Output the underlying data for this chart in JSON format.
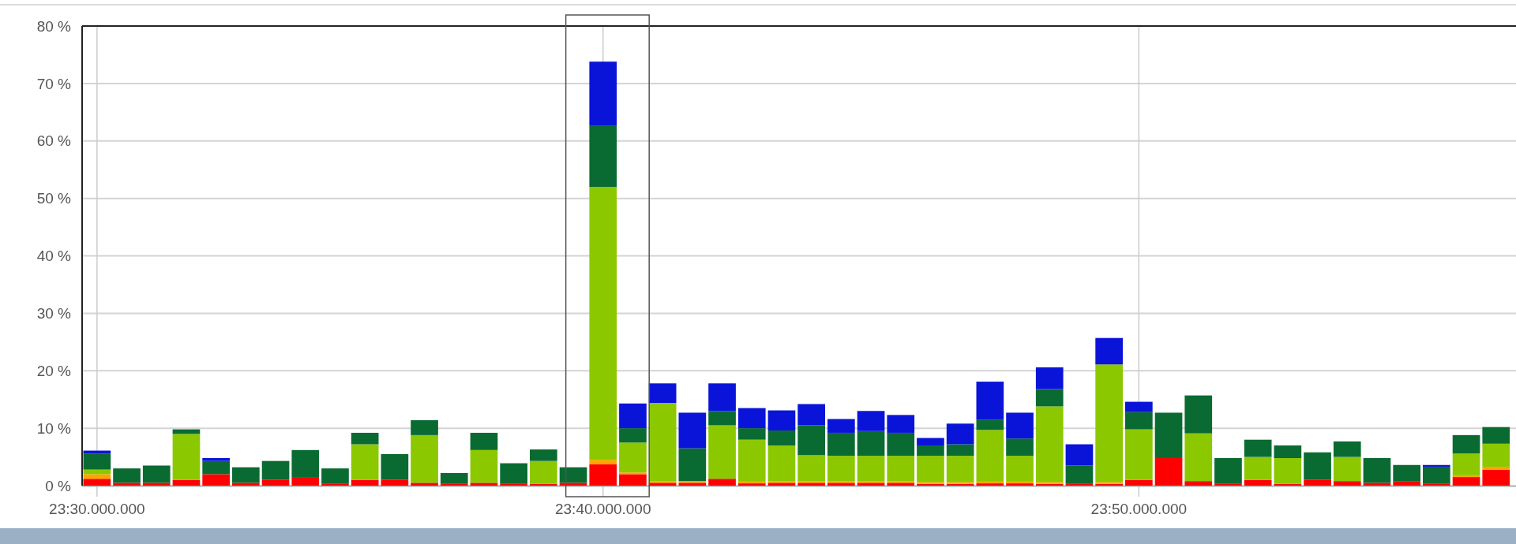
{
  "chart_data": {
    "type": "bar",
    "stacked": true,
    "categories": [
      "23:30.000.000",
      null,
      null,
      null,
      null,
      null,
      null,
      null,
      null,
      null,
      null,
      null,
      null,
      null,
      null,
      null,
      null,
      "23:40.000.000",
      null,
      null,
      null,
      null,
      null,
      null,
      null,
      null,
      null,
      null,
      null,
      null,
      null,
      null,
      null,
      null,
      null,
      "23:50.000.000",
      null,
      null,
      null,
      null,
      null,
      null,
      null,
      null,
      null,
      null,
      null,
      null
    ],
    "series": [
      {
        "color": "#ff0000",
        "values": [
          1.2,
          0.5,
          0.5,
          1,
          2,
          0.5,
          1,
          1.5,
          0.3,
          1,
          1,
          0.5,
          0.3,
          0.5,
          0.3,
          0.3,
          0.5,
          3.7,
          2,
          0.5,
          0.5,
          1.2,
          0.4,
          0.5,
          0.5,
          0.5,
          0.5,
          0.5,
          0.3,
          0.3,
          0.4,
          0.4,
          0.3,
          0.3,
          0.3,
          1,
          4.8,
          0.8,
          0.3,
          1,
          0.3,
          1,
          0.8,
          0.5,
          0.8,
          0.3,
          1.5,
          2.8
        ]
      },
      {
        "color": "#ffa500",
        "values": [
          0.8,
          0,
          0,
          0,
          0,
          0,
          0,
          0,
          0,
          0,
          0,
          0,
          0,
          0,
          0,
          0,
          0,
          0.8,
          0.3,
          0.3,
          0.3,
          0,
          0.3,
          0.3,
          0.3,
          0.3,
          0.3,
          0.3,
          0.3,
          0.3,
          0.3,
          0.3,
          0.3,
          0,
          0.3,
          0,
          0,
          0,
          0,
          0,
          0,
          0,
          0,
          0,
          0,
          0,
          0.3,
          0.5
        ]
      },
      {
        "color": "#8cc800",
        "values": [
          0.8,
          0,
          0,
          8,
          0,
          0,
          0,
          0,
          0,
          6.2,
          0,
          8.3,
          0,
          5.7,
          0,
          4,
          0,
          47.5,
          5.2,
          13.6,
          0,
          9.3,
          7.3,
          6.2,
          4.5,
          4.4,
          4.4,
          4.4,
          4.6,
          4.6,
          9,
          4.5,
          13.2,
          0,
          20.5,
          8.8,
          0,
          8.3,
          0,
          4,
          4.5,
          0,
          4.2,
          0,
          0,
          0,
          3.8,
          4
        ]
      },
      {
        "color": "#0a6b32",
        "values": [
          2.8,
          2.5,
          3,
          0.8,
          2.3,
          2.7,
          3.3,
          4.7,
          2.7,
          2,
          4.5,
          2.6,
          1.9,
          3,
          3.6,
          2,
          2.7,
          10.7,
          2.5,
          0,
          5.7,
          2.5,
          2,
          2.6,
          5.2,
          4,
          4.3,
          4,
          1.8,
          2,
          1.8,
          3,
          3,
          3.2,
          0,
          3,
          7.9,
          6.6,
          4.5,
          3,
          2.2,
          4.8,
          2.7,
          4.3,
          2.8,
          3,
          3.2,
          2.9
        ]
      },
      {
        "color": "#0a14d8",
        "values": [
          0.5,
          0,
          0,
          0,
          0.5,
          0,
          0,
          0,
          0,
          0,
          0,
          0,
          0,
          0,
          0,
          0,
          0,
          11.1,
          4.3,
          3.4,
          6.2,
          4.8,
          3.5,
          3.5,
          3.7,
          2.4,
          3.5,
          3.1,
          1.3,
          3.6,
          6.6,
          4.5,
          3.8,
          3.7,
          4.6,
          1.8,
          0,
          0,
          0,
          0,
          0,
          0,
          0,
          0,
          0,
          0.3,
          0,
          0
        ]
      }
    ],
    "ylim": [
      0,
      80
    ],
    "yticks": [
      {
        "value": 0,
        "label": "0 %"
      },
      {
        "value": 10,
        "label": "10 %"
      },
      {
        "value": 20,
        "label": "20 %"
      },
      {
        "value": 30,
        "label": "30 %"
      },
      {
        "value": 40,
        "label": "40 %"
      },
      {
        "value": 50,
        "label": "50 %"
      },
      {
        "value": 60,
        "label": "60 %"
      },
      {
        "value": 70,
        "label": "70 %"
      },
      {
        "value": 80,
        "label": "80 %"
      }
    ],
    "grid": true
  }
}
